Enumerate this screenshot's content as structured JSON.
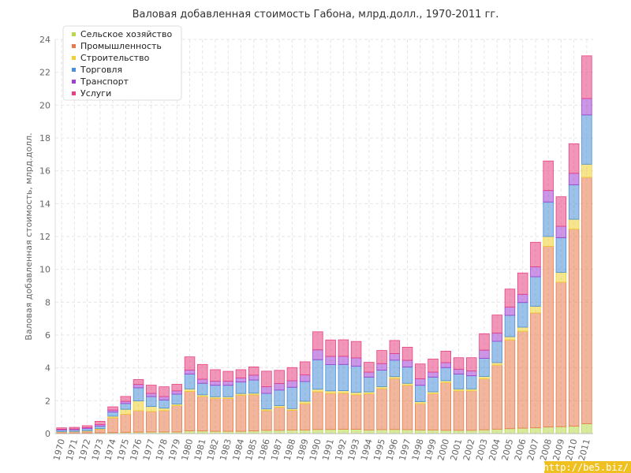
{
  "chart_data": {
    "type": "bar",
    "stacked": true,
    "title": "Валовая добавленная стоимость Габона, млрд.долл., 1970-2011 гг.",
    "xlabel": "",
    "ylabel": "Валовая добавленная стоимость, млрд.долл.",
    "ylim": [
      0,
      24
    ],
    "yticks": [
      0,
      2,
      4,
      6,
      8,
      10,
      12,
      14,
      16,
      18,
      20,
      22,
      24
    ],
    "grid": true,
    "legend_position": "top-left",
    "categories": [
      "1970",
      "1971",
      "1972",
      "1973",
      "1974",
      "1975",
      "1976",
      "1977",
      "1978",
      "1979",
      "1980",
      "1981",
      "1982",
      "1983",
      "1984",
      "1985",
      "1986",
      "1987",
      "1988",
      "1989",
      "1990",
      "1991",
      "1992",
      "1993",
      "1994",
      "1995",
      "1996",
      "1997",
      "1998",
      "1999",
      "2000",
      "2001",
      "2002",
      "2003",
      "2004",
      "2005",
      "2006",
      "2007",
      "2008",
      "2009",
      "2010",
      "2011"
    ],
    "series": [
      {
        "name": "Сельское хозяйство",
        "color": "#b8d84a",
        "values": [
          0.03,
          0.03,
          0.04,
          0.05,
          0.06,
          0.08,
          0.09,
          0.1,
          0.1,
          0.1,
          0.17,
          0.16,
          0.14,
          0.14,
          0.14,
          0.16,
          0.2,
          0.2,
          0.22,
          0.22,
          0.25,
          0.25,
          0.26,
          0.26,
          0.22,
          0.24,
          0.25,
          0.24,
          0.22,
          0.22,
          0.2,
          0.2,
          0.2,
          0.23,
          0.27,
          0.3,
          0.33,
          0.35,
          0.4,
          0.42,
          0.45,
          0.6
        ]
      },
      {
        "name": "Промышленность",
        "color": "#e87a4d",
        "values": [
          0.07,
          0.08,
          0.1,
          0.2,
          0.9,
          1.1,
          1.3,
          1.25,
          1.3,
          1.6,
          2.4,
          2.1,
          2.0,
          2.0,
          2.2,
          2.2,
          1.2,
          1.4,
          1.2,
          1.6,
          2.3,
          2.2,
          2.2,
          2.1,
          2.2,
          2.5,
          3.1,
          2.7,
          1.6,
          2.2,
          2.9,
          2.4,
          2.4,
          3.1,
          3.9,
          5.4,
          5.9,
          7.0,
          11.0,
          8.8,
          12.0,
          15.0
        ]
      },
      {
        "name": "Строительство",
        "color": "#f0d030",
        "values": [
          0.02,
          0.02,
          0.03,
          0.05,
          0.1,
          0.3,
          0.6,
          0.3,
          0.15,
          0.1,
          0.15,
          0.1,
          0.1,
          0.1,
          0.1,
          0.1,
          0.1,
          0.1,
          0.1,
          0.15,
          0.15,
          0.15,
          0.15,
          0.15,
          0.12,
          0.12,
          0.12,
          0.12,
          0.12,
          0.12,
          0.12,
          0.12,
          0.12,
          0.15,
          0.15,
          0.2,
          0.25,
          0.4,
          0.6,
          0.6,
          0.6,
          0.8
        ]
      },
      {
        "name": "Торговля",
        "color": "#4a90d8",
        "values": [
          0.1,
          0.1,
          0.13,
          0.15,
          0.25,
          0.35,
          0.8,
          0.6,
          0.5,
          0.6,
          0.9,
          0.7,
          0.7,
          0.7,
          0.7,
          0.8,
          0.95,
          0.95,
          1.3,
          1.2,
          1.8,
          1.6,
          1.6,
          1.6,
          0.9,
          1.0,
          1.0,
          1.0,
          1.0,
          0.9,
          0.8,
          0.9,
          0.8,
          1.1,
          1.3,
          1.3,
          1.5,
          1.8,
          2.1,
          2.1,
          2.1,
          3.0
        ]
      },
      {
        "name": "Транспорт",
        "color": "#a040d0",
        "values": [
          0.04,
          0.05,
          0.06,
          0.1,
          0.12,
          0.13,
          0.2,
          0.2,
          0.2,
          0.2,
          0.25,
          0.25,
          0.25,
          0.25,
          0.25,
          0.3,
          0.4,
          0.4,
          0.4,
          0.4,
          0.6,
          0.5,
          0.5,
          0.5,
          0.3,
          0.4,
          0.4,
          0.4,
          0.4,
          0.3,
          0.3,
          0.3,
          0.3,
          0.5,
          0.5,
          0.5,
          0.5,
          0.6,
          0.7,
          0.7,
          0.7,
          1.0
        ]
      },
      {
        "name": "Услуги",
        "color": "#e84080",
        "values": [
          0.09,
          0.1,
          0.12,
          0.2,
          0.2,
          0.3,
          0.3,
          0.5,
          0.6,
          0.4,
          0.8,
          0.9,
          0.7,
          0.6,
          0.5,
          0.5,
          0.95,
          0.8,
          0.8,
          0.8,
          1.1,
          1.0,
          1.0,
          1.0,
          0.6,
          0.8,
          0.8,
          0.8,
          0.9,
          0.8,
          0.7,
          0.7,
          0.8,
          1.0,
          1.1,
          1.1,
          1.3,
          1.5,
          1.8,
          1.8,
          1.8,
          2.6
        ]
      }
    ]
  },
  "watermark": "http://be5.biz/"
}
